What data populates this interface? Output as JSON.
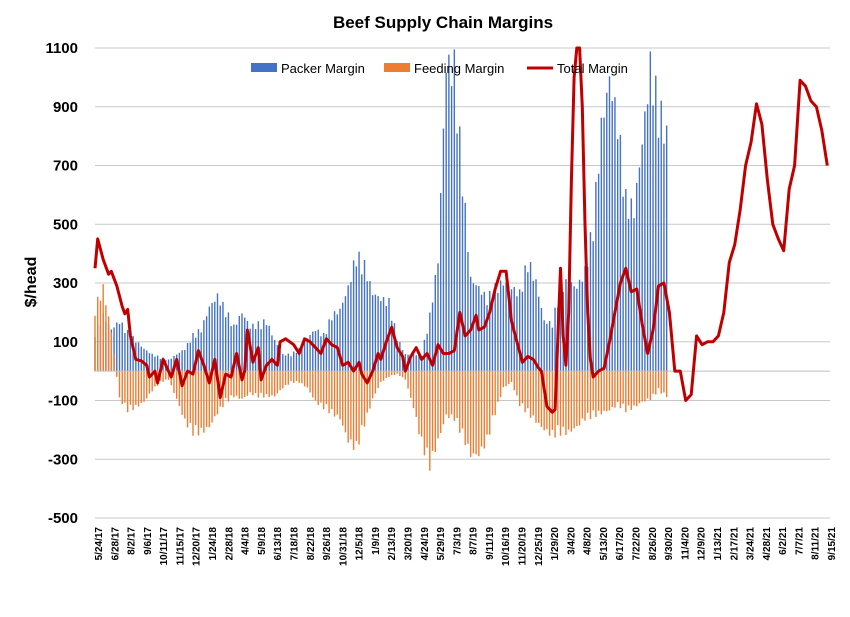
{
  "chart_data": {
    "type": "bar",
    "title": "Beef Supply Chain Margins",
    "ylabel": "$/head",
    "xlabel": "",
    "ylim": [
      -500,
      1100
    ],
    "yticks": [
      1100,
      900,
      700,
      500,
      300,
      100,
      -100,
      -300,
      -500
    ],
    "grid": true,
    "legend_position": "top",
    "x_tick_labels": [
      "5/24/17",
      "6/28/17",
      "8/2/17",
      "9/6/17",
      "10/11/17",
      "11/15/17",
      "12/20/17",
      "1/24/18",
      "2/28/18",
      "4/4/18",
      "5/9/18",
      "6/13/18",
      "7/18/18",
      "8/22/18",
      "9/26/18",
      "10/31/18",
      "12/5/18",
      "1/9/19",
      "2/13/19",
      "3/20/19",
      "4/24/19",
      "5/29/19",
      "7/3/19",
      "8/7/19",
      "9/11/19",
      "10/16/19",
      "11/20/19",
      "12/25/19",
      "1/29/20",
      "3/4/20",
      "4/8/20",
      "5/13/20",
      "6/17/20",
      "7/22/20",
      "8/26/20",
      "9/30/20",
      "11/4/20",
      "12/9/20",
      "1/13/21",
      "2/17/21",
      "3/24/21",
      "4/28/21",
      "6/2/21",
      "7/7/21",
      "8/11/21",
      "9/15/21"
    ],
    "series": [
      {
        "name": "Packer Margin",
        "type": "bar",
        "color": "#4472c4",
        "points": [
          [
            0,
            140
          ],
          [
            3,
            200
          ],
          [
            6,
            150
          ],
          [
            9,
            180
          ],
          [
            12,
            140
          ],
          [
            15,
            110
          ],
          [
            18,
            80
          ],
          [
            21,
            60
          ],
          [
            24,
            50
          ],
          [
            27,
            40
          ],
          [
            30,
            60
          ],
          [
            33,
            80
          ],
          [
            36,
            130
          ],
          [
            39,
            150
          ],
          [
            42,
            230
          ],
          [
            45,
            270
          ],
          [
            48,
            220
          ],
          [
            51,
            160
          ],
          [
            54,
            210
          ],
          [
            57,
            160
          ],
          [
            60,
            170
          ],
          [
            63,
            180
          ],
          [
            66,
            110
          ],
          [
            69,
            60
          ],
          [
            72,
            60
          ],
          [
            75,
            80
          ],
          [
            78,
            120
          ],
          [
            81,
            150
          ],
          [
            84,
            130
          ],
          [
            87,
            200
          ],
          [
            90,
            220
          ],
          [
            93,
            300
          ],
          [
            96,
            420
          ],
          [
            99,
            380
          ],
          [
            102,
            280
          ],
          [
            105,
            260
          ],
          [
            108,
            250
          ],
          [
            111,
            120
          ],
          [
            114,
            60
          ],
          [
            117,
            60
          ],
          [
            120,
            60
          ],
          [
            123,
            200
          ],
          [
            126,
            400
          ],
          [
            129,
            1100
          ],
          [
            132,
            1100
          ],
          [
            135,
            700
          ],
          [
            138,
            330
          ],
          [
            141,
            300
          ],
          [
            144,
            260
          ],
          [
            147,
            300
          ],
          [
            150,
            320
          ],
          [
            153,
            300
          ],
          [
            156,
            280
          ],
          [
            159,
            400
          ],
          [
            162,
            320
          ],
          [
            165,
            180
          ],
          [
            168,
            170
          ],
          [
            171,
            310
          ],
          [
            174,
            320
          ],
          [
            177,
            300
          ],
          [
            180,
            360
          ],
          [
            183,
            530
          ],
          [
            186,
            880
          ],
          [
            189,
            1050
          ],
          [
            192,
            900
          ],
          [
            195,
            620
          ],
          [
            198,
            580
          ],
          [
            201,
            820
          ],
          [
            204,
            1100
          ],
          [
            207,
            960
          ],
          [
            210,
            850
          ]
        ]
      },
      {
        "name": "Feeding Margin",
        "type": "bar",
        "color": "#ed7d31",
        "points": [
          [
            0,
            230
          ],
          [
            3,
            300
          ],
          [
            6,
            140
          ],
          [
            9,
            -100
          ],
          [
            12,
            -140
          ],
          [
            15,
            -130
          ],
          [
            18,
            -110
          ],
          [
            21,
            -70
          ],
          [
            24,
            -40
          ],
          [
            27,
            -30
          ],
          [
            30,
            -100
          ],
          [
            33,
            -180
          ],
          [
            36,
            -220
          ],
          [
            39,
            -220
          ],
          [
            42,
            -200
          ],
          [
            45,
            -150
          ],
          [
            48,
            -110
          ],
          [
            51,
            -90
          ],
          [
            54,
            -100
          ],
          [
            57,
            -80
          ],
          [
            60,
            -90
          ],
          [
            63,
            -90
          ],
          [
            66,
            -90
          ],
          [
            69,
            -60
          ],
          [
            72,
            -40
          ],
          [
            75,
            -40
          ],
          [
            78,
            -60
          ],
          [
            81,
            -110
          ],
          [
            84,
            -130
          ],
          [
            87,
            -150
          ],
          [
            90,
            -170
          ],
          [
            93,
            -250
          ],
          [
            96,
            -280
          ],
          [
            99,
            -190
          ],
          [
            102,
            -100
          ],
          [
            105,
            -40
          ],
          [
            108,
            -20
          ],
          [
            111,
            -10
          ],
          [
            114,
            -30
          ],
          [
            117,
            -130
          ],
          [
            120,
            -260
          ],
          [
            123,
            -340
          ],
          [
            126,
            -250
          ],
          [
            129,
            -160
          ],
          [
            132,
            -170
          ],
          [
            135,
            -230
          ],
          [
            138,
            -300
          ],
          [
            141,
            -300
          ],
          [
            144,
            -250
          ],
          [
            147,
            -150
          ],
          [
            150,
            -60
          ],
          [
            153,
            -40
          ],
          [
            156,
            -120
          ],
          [
            159,
            -150
          ],
          [
            162,
            -180
          ],
          [
            165,
            -210
          ],
          [
            168,
            -230
          ],
          [
            171,
            -220
          ],
          [
            174,
            -220
          ],
          [
            177,
            -200
          ],
          [
            180,
            -170
          ],
          [
            183,
            -160
          ],
          [
            186,
            -150
          ],
          [
            189,
            -140
          ],
          [
            192,
            -120
          ],
          [
            195,
            -140
          ],
          [
            198,
            -130
          ],
          [
            201,
            -110
          ],
          [
            204,
            -100
          ],
          [
            207,
            -70
          ],
          [
            210,
            -90
          ]
        ]
      },
      {
        "name": "Total Margin",
        "type": "line",
        "color": "#c00000",
        "points": [
          [
            0,
            350
          ],
          [
            1,
            450
          ],
          [
            3,
            380
          ],
          [
            5,
            330
          ],
          [
            6,
            340
          ],
          [
            8,
            290
          ],
          [
            10,
            220
          ],
          [
            11,
            195
          ],
          [
            12,
            210
          ],
          [
            13,
            120
          ],
          [
            15,
            40
          ],
          [
            17,
            35
          ],
          [
            19,
            20
          ],
          [
            20,
            -20
          ],
          [
            22,
            0
          ],
          [
            23,
            -40
          ],
          [
            25,
            40
          ],
          [
            27,
            0
          ],
          [
            28,
            -20
          ],
          [
            30,
            40
          ],
          [
            32,
            -50
          ],
          [
            34,
            0
          ],
          [
            36,
            -10
          ],
          [
            38,
            70
          ],
          [
            40,
            20
          ],
          [
            42,
            -40
          ],
          [
            44,
            40
          ],
          [
            46,
            -90
          ],
          [
            48,
            -10
          ],
          [
            50,
            -20
          ],
          [
            52,
            60
          ],
          [
            54,
            -30
          ],
          [
            55,
            0
          ],
          [
            56,
            140
          ],
          [
            58,
            30
          ],
          [
            60,
            80
          ],
          [
            61,
            -30
          ],
          [
            63,
            20
          ],
          [
            65,
            40
          ],
          [
            67,
            20
          ],
          [
            68,
            100
          ],
          [
            70,
            110
          ],
          [
            73,
            90
          ],
          [
            75,
            60
          ],
          [
            77,
            110
          ],
          [
            79,
            100
          ],
          [
            81,
            80
          ],
          [
            83,
            60
          ],
          [
            85,
            110
          ],
          [
            87,
            90
          ],
          [
            89,
            80
          ],
          [
            91,
            20
          ],
          [
            93,
            30
          ],
          [
            95,
            0
          ],
          [
            97,
            30
          ],
          [
            98,
            -10
          ],
          [
            100,
            -40
          ],
          [
            102,
            0
          ],
          [
            104,
            60
          ],
          [
            105,
            40
          ],
          [
            107,
            100
          ],
          [
            109,
            150
          ],
          [
            111,
            80
          ],
          [
            113,
            50
          ],
          [
            114,
            0
          ],
          [
            116,
            50
          ],
          [
            118,
            80
          ],
          [
            120,
            40
          ],
          [
            122,
            60
          ],
          [
            124,
            20
          ],
          [
            126,
            90
          ],
          [
            128,
            60
          ],
          [
            130,
            60
          ],
          [
            132,
            70
          ],
          [
            134,
            200
          ],
          [
            136,
            120
          ],
          [
            138,
            140
          ],
          [
            140,
            190
          ],
          [
            141,
            140
          ],
          [
            143,
            150
          ],
          [
            145,
            200
          ],
          [
            147,
            280
          ],
          [
            149,
            340
          ],
          [
            151,
            340
          ],
          [
            153,
            170
          ],
          [
            155,
            100
          ],
          [
            157,
            30
          ],
          [
            159,
            50
          ],
          [
            161,
            40
          ],
          [
            163,
            10
          ],
          [
            164,
            0
          ],
          [
            166,
            -120
          ],
          [
            168,
            -140
          ],
          [
            169,
            -130
          ],
          [
            171,
            350
          ],
          [
            172,
            120
          ],
          [
            173,
            20
          ],
          [
            174,
            200
          ],
          [
            175,
            650
          ],
          [
            176,
            1000
          ],
          [
            177,
            1100
          ],
          [
            178,
            1100
          ],
          [
            179,
            900
          ],
          [
            180,
            500
          ],
          [
            181,
            200
          ],
          [
            182,
            40
          ],
          [
            183,
            -20
          ],
          [
            185,
            0
          ],
          [
            187,
            10
          ],
          [
            189,
            100
          ],
          [
            191,
            200
          ],
          [
            193,
            300
          ],
          [
            195,
            350
          ],
          [
            197,
            270
          ],
          [
            199,
            280
          ],
          [
            201,
            160
          ],
          [
            203,
            60
          ],
          [
            205,
            140
          ],
          [
            207,
            290
          ],
          [
            209,
            300
          ],
          [
            211,
            200
          ],
          [
            213,
            0
          ],
          [
            215,
            0
          ],
          [
            217,
            -100
          ],
          [
            219,
            -80
          ],
          [
            221,
            120
          ],
          [
            223,
            90
          ],
          [
            225,
            100
          ],
          [
            227,
            100
          ],
          [
            229,
            120
          ],
          [
            231,
            200
          ],
          [
            233,
            370
          ],
          [
            235,
            430
          ],
          [
            237,
            550
          ],
          [
            239,
            700
          ],
          [
            241,
            780
          ],
          [
            243,
            910
          ],
          [
            245,
            840
          ],
          [
            247,
            650
          ],
          [
            249,
            500
          ],
          [
            251,
            450
          ],
          [
            253,
            410
          ],
          [
            255,
            620
          ],
          [
            257,
            700
          ],
          [
            259,
            990
          ],
          [
            261,
            970
          ],
          [
            263,
            920
          ],
          [
            265,
            900
          ],
          [
            267,
            820
          ],
          [
            269,
            700
          ]
        ]
      }
    ],
    "x_index_range": [
      0,
      270
    ]
  }
}
